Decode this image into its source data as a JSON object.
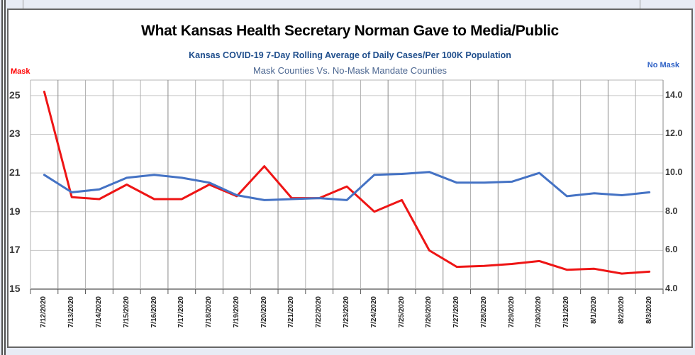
{
  "theme": {
    "page_bg": "#e8ecf5",
    "panel_bg": "#ffffff",
    "panel_border": "#666666",
    "title_color": "#000000",
    "subtitle_color": "#1f4e8c",
    "subtitle2_color": "#4a6590",
    "tick_label_color": "#3a3a3a",
    "date_label_color": "#1f1f1f",
    "grid_h_color": "#c6c6c6",
    "grid_v_color": "#b0b0b0",
    "grid_v_dark_color": "#8a8a8a",
    "plot_top_border_color": "#b4b4b4",
    "axis_line_color": "#6f6f6f",
    "tick_mark_color": "#555555"
  },
  "chart_data": {
    "type": "line",
    "title": "What Kansas Health Secretary Norman Gave to Media/Public",
    "subtitle": "Kansas COVID-19 7-Day Rolling Average of Daily Cases/Per 100K Population",
    "subtitle2": "Mask Counties Vs. No-Mask Mandate Counties",
    "categories": [
      "7/12/2020",
      "7/13/2020",
      "7/14/2020",
      "7/15/2020",
      "7/16/2020",
      "7/17/2020",
      "7/18/2020",
      "7/19/2020",
      "7/20/2020",
      "7/21/2020",
      "7/22/2020",
      "7/23/2020",
      "7/24/2020",
      "7/25/2020",
      "7/26/2020",
      "7/27/2020",
      "7/28/2020",
      "7/29/2020",
      "7/30/2020",
      "7/31/2020",
      "8/1/2020",
      "8/2/2020",
      "8/3/2020"
    ],
    "series": [
      {
        "name": "Mask",
        "axis": "left",
        "color": "#ee1515",
        "values": [
          25.2,
          19.75,
          19.65,
          20.4,
          19.65,
          19.65,
          20.4,
          19.8,
          21.35,
          19.7,
          19.7,
          20.3,
          19.0,
          19.6,
          17.0,
          16.15,
          16.2,
          16.3,
          16.45,
          16.0,
          16.05,
          15.8,
          15.9
        ]
      },
      {
        "name": "No Mask",
        "axis": "right",
        "color": "#4472c4",
        "values": [
          9.9,
          9.0,
          9.15,
          9.75,
          9.9,
          9.75,
          9.5,
          8.85,
          8.6,
          8.65,
          8.7,
          8.6,
          9.9,
          9.95,
          10.05,
          9.5,
          9.5,
          9.55,
          10.0,
          8.8,
          8.95,
          8.85,
          9.0
        ]
      }
    ],
    "left_axis": {
      "label": "Mask",
      "label_color": "#ff0000",
      "ticks": [
        15,
        17,
        19,
        21,
        23,
        25
      ],
      "tick_labels": [
        "15",
        "17",
        "19",
        "21",
        "23",
        "25"
      ],
      "range": [
        15,
        25.8
      ]
    },
    "right_axis": {
      "label": "No Mask",
      "label_color": "#2f62c6",
      "ticks": [
        4,
        6,
        8,
        10,
        12,
        14
      ],
      "tick_labels": [
        "4.0",
        "6.0",
        "8.0",
        "10.0",
        "12.0",
        "14.0"
      ],
      "range": [
        4,
        14.8
      ]
    },
    "grid": true,
    "legend_position": "axis-corner-labels"
  }
}
